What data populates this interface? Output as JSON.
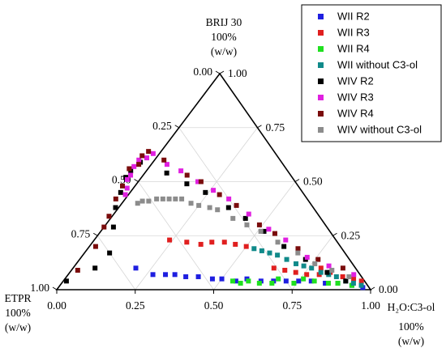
{
  "chart_data": {
    "type": "scatter",
    "subtype": "ternary",
    "grid": true,
    "legend_position": "top-right",
    "axis_ticks": [
      "0.00",
      "0.25",
      "0.50",
      "0.75",
      "1.00"
    ],
    "vertices": {
      "top": [
        "BRIJ 30",
        "100%",
        "(w/w)"
      ],
      "left": [
        "ETPR",
        "100%",
        "(w/w)"
      ],
      "right": [
        "H₂O:C3-ol",
        "100%",
        "(w/w)"
      ]
    },
    "coordinate_keys": [
      "etpr",
      "brij",
      "water"
    ],
    "series": [
      {
        "name": "WII R2",
        "color": "#1f1fe0",
        "points": [
          [
            0.7,
            0.1,
            0.2
          ],
          [
            0.66,
            0.07,
            0.27
          ],
          [
            0.62,
            0.07,
            0.31
          ],
          [
            0.59,
            0.07,
            0.34
          ],
          [
            0.56,
            0.06,
            0.38
          ],
          [
            0.52,
            0.06,
            0.42
          ],
          [
            0.48,
            0.05,
            0.47
          ],
          [
            0.45,
            0.05,
            0.5
          ],
          [
            0.41,
            0.04,
            0.55
          ],
          [
            0.37,
            0.05,
            0.58
          ],
          [
            0.33,
            0.04,
            0.63
          ],
          [
            0.29,
            0.04,
            0.67
          ],
          [
            0.25,
            0.04,
            0.71
          ],
          [
            0.21,
            0.04,
            0.75
          ],
          [
            0.17,
            0.04,
            0.79
          ],
          [
            0.13,
            0.03,
            0.84
          ],
          [
            0.09,
            0.03,
            0.88
          ],
          [
            0.05,
            0.02,
            0.93
          ],
          [
            0.02,
            0.01,
            0.97
          ]
        ]
      },
      {
        "name": "WII R3",
        "color": "#e01f1f",
        "points": [
          [
            0.53,
            0.23,
            0.24
          ],
          [
            0.48,
            0.22,
            0.3
          ],
          [
            0.44,
            0.21,
            0.35
          ],
          [
            0.4,
            0.22,
            0.38
          ],
          [
            0.36,
            0.22,
            0.42
          ],
          [
            0.33,
            0.21,
            0.46
          ],
          [
            0.3,
            0.2,
            0.5
          ],
          [
            0.26,
            0.1,
            0.64
          ],
          [
            0.23,
            0.09,
            0.68
          ],
          [
            0.2,
            0.08,
            0.72
          ],
          [
            0.17,
            0.07,
            0.76
          ],
          [
            0.13,
            0.07,
            0.8
          ],
          [
            0.11,
            0.1,
            0.79
          ],
          [
            0.09,
            0.08,
            0.83
          ],
          [
            0.06,
            0.06,
            0.88
          ],
          [
            0.03,
            0.05,
            0.92
          ],
          [
            0.01,
            0.04,
            0.95
          ]
        ]
      },
      {
        "name": "WII R4",
        "color": "#20e020",
        "points": [
          [
            0.42,
            0.04,
            0.54
          ],
          [
            0.4,
            0.03,
            0.57
          ],
          [
            0.37,
            0.04,
            0.59
          ],
          [
            0.34,
            0.03,
            0.63
          ],
          [
            0.3,
            0.03,
            0.67
          ],
          [
            0.27,
            0.05,
            0.68
          ],
          [
            0.23,
            0.03,
            0.74
          ],
          [
            0.19,
            0.05,
            0.76
          ],
          [
            0.16,
            0.04,
            0.8
          ],
          [
            0.12,
            0.03,
            0.85
          ],
          [
            0.09,
            0.03,
            0.88
          ],
          [
            0.05,
            0.02,
            0.93
          ]
        ]
      },
      {
        "name": "WII without C3-ol",
        "color": "#108a8a",
        "points": [
          [
            0.28,
            0.19,
            0.53
          ],
          [
            0.26,
            0.18,
            0.56
          ],
          [
            0.24,
            0.17,
            0.59
          ],
          [
            0.22,
            0.16,
            0.62
          ],
          [
            0.2,
            0.14,
            0.66
          ],
          [
            0.18,
            0.12,
            0.7
          ],
          [
            0.16,
            0.11,
            0.73
          ],
          [
            0.14,
            0.1,
            0.76
          ],
          [
            0.12,
            0.08,
            0.8
          ],
          [
            0.1,
            0.07,
            0.83
          ],
          [
            0.08,
            0.06,
            0.86
          ],
          [
            0.06,
            0.04,
            0.9
          ],
          [
            0.04,
            0.03,
            0.93
          ],
          [
            0.02,
            0.02,
            0.96
          ]
        ]
      },
      {
        "name": "WIV R2",
        "color": "#000000",
        "points": [
          [
            0.95,
            0.04,
            0.01
          ],
          [
            0.83,
            0.1,
            0.07
          ],
          [
            0.75,
            0.17,
            0.08
          ],
          [
            0.68,
            0.29,
            0.03
          ],
          [
            0.63,
            0.38,
            -0.01
          ],
          [
            0.58,
            0.45,
            -0.03
          ],
          [
            0.53,
            0.52,
            -0.05
          ],
          [
            0.5,
            0.55,
            -0.05
          ],
          [
            0.45,
            0.59,
            -0.04
          ],
          [
            0.39,
            0.54,
            0.07
          ],
          [
            0.35,
            0.49,
            0.16
          ],
          [
            0.31,
            0.45,
            0.24
          ],
          [
            0.27,
            0.38,
            0.35
          ],
          [
            0.24,
            0.33,
            0.43
          ],
          [
            0.21,
            0.27,
            0.52
          ],
          [
            0.18,
            0.2,
            0.62
          ],
          [
            0.14,
            0.14,
            0.72
          ],
          [
            0.1,
            0.08,
            0.82
          ],
          [
            0.06,
            0.04,
            0.9
          ]
        ]
      },
      {
        "name": "WIV R3",
        "color": "#e020e0",
        "points": [
          [
            0.57,
            0.44,
            -0.01
          ],
          [
            0.55,
            0.47,
            -0.02
          ],
          [
            0.53,
            0.51,
            -0.04
          ],
          [
            0.51,
            0.53,
            -0.04
          ],
          [
            0.48,
            0.57,
            -0.05
          ],
          [
            0.45,
            0.6,
            -0.05
          ],
          [
            0.42,
            0.61,
            -0.03
          ],
          [
            0.39,
            0.63,
            -0.02
          ],
          [
            0.37,
            0.58,
            0.05
          ],
          [
            0.34,
            0.55,
            0.11
          ],
          [
            0.31,
            0.5,
            0.19
          ],
          [
            0.28,
            0.46,
            0.26
          ],
          [
            0.25,
            0.42,
            0.33
          ],
          [
            0.22,
            0.35,
            0.43
          ],
          [
            0.19,
            0.28,
            0.53
          ],
          [
            0.16,
            0.23,
            0.61
          ],
          [
            0.13,
            0.15,
            0.72
          ],
          [
            0.08,
            0.11,
            0.81
          ],
          [
            0.02,
            0.07,
            0.91
          ]
        ]
      },
      {
        "name": "WIV R4",
        "color": "#7a0c0c",
        "points": [
          [
            0.89,
            0.09,
            0.02
          ],
          [
            0.78,
            0.2,
            0.02
          ],
          [
            0.71,
            0.29,
            0.0
          ],
          [
            0.67,
            0.34,
            -0.01
          ],
          [
            0.61,
            0.42,
            -0.03
          ],
          [
            0.56,
            0.48,
            -0.04
          ],
          [
            0.5,
            0.56,
            -0.06
          ],
          [
            0.46,
            0.58,
            -0.04
          ],
          [
            0.43,
            0.62,
            -0.05
          ],
          [
            0.4,
            0.64,
            -0.04
          ],
          [
            0.37,
            0.6,
            0.03
          ],
          [
            0.33,
            0.53,
            0.14
          ],
          [
            0.3,
            0.5,
            0.2
          ],
          [
            0.27,
            0.44,
            0.29
          ],
          [
            0.24,
            0.39,
            0.37
          ],
          [
            0.21,
            0.3,
            0.49
          ],
          [
            0.18,
            0.26,
            0.56
          ],
          [
            0.14,
            0.19,
            0.67
          ],
          [
            0.1,
            0.14,
            0.76
          ],
          [
            0.04,
            0.1,
            0.86
          ]
        ]
      },
      {
        "name": "WIV without C3-ol",
        "color": "#8c8c8c",
        "points": [
          [
            0.55,
            0.4,
            0.05
          ],
          [
            0.53,
            0.41,
            0.06
          ],
          [
            0.51,
            0.41,
            0.08
          ],
          [
            0.48,
            0.42,
            0.1
          ],
          [
            0.46,
            0.42,
            0.12
          ],
          [
            0.44,
            0.42,
            0.14
          ],
          [
            0.42,
            0.42,
            0.16
          ],
          [
            0.4,
            0.42,
            0.18
          ],
          [
            0.38,
            0.4,
            0.22
          ],
          [
            0.36,
            0.39,
            0.25
          ],
          [
            0.33,
            0.38,
            0.29
          ],
          [
            0.31,
            0.37,
            0.32
          ],
          [
            0.28,
            0.33,
            0.39
          ],
          [
            0.25,
            0.3,
            0.45
          ],
          [
            0.22,
            0.27,
            0.51
          ],
          [
            0.19,
            0.22,
            0.59
          ],
          [
            0.15,
            0.17,
            0.68
          ],
          [
            0.12,
            0.12,
            0.76
          ],
          [
            0.08,
            0.09,
            0.83
          ],
          [
            0.04,
            0.06,
            0.9
          ]
        ]
      }
    ]
  }
}
